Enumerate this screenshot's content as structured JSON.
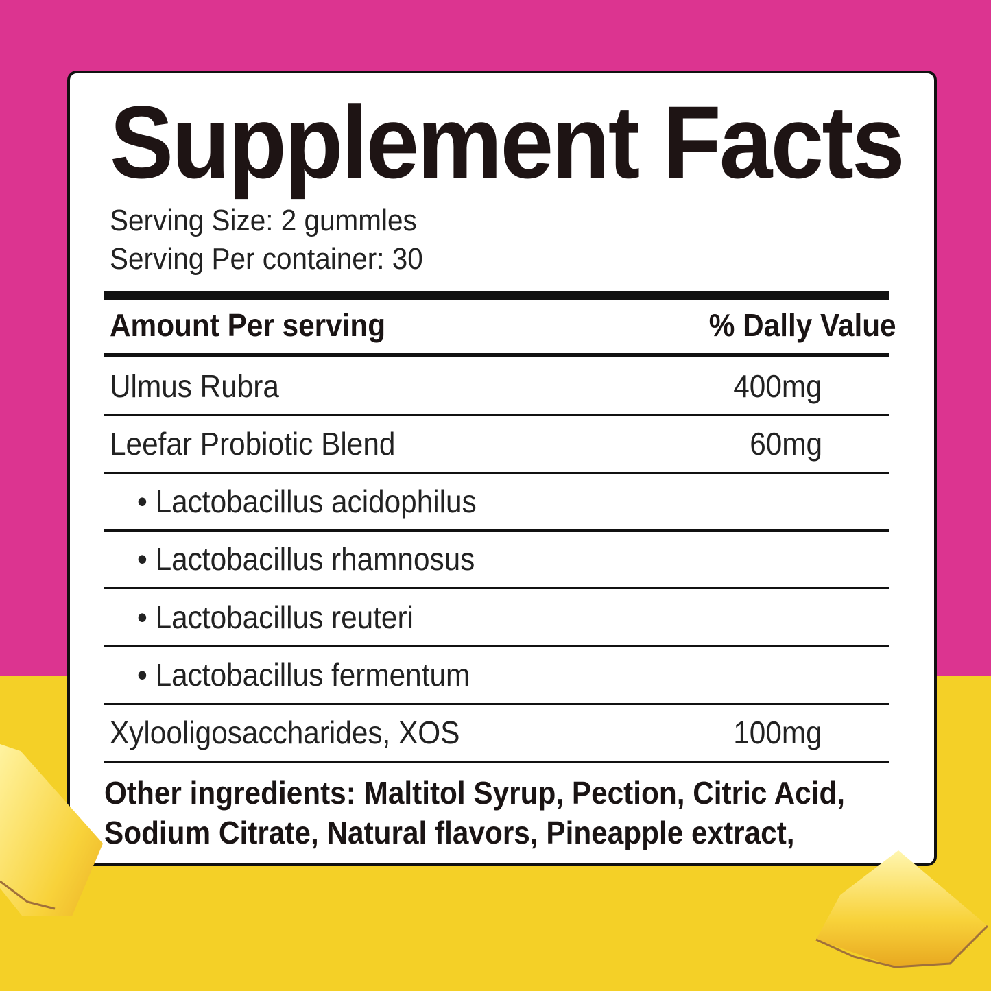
{
  "background": {
    "top_color": "#dc3490",
    "bottom_color": "#f4d027"
  },
  "label": {
    "title": "Supplement Facts",
    "serving_size": "Serving Size: 2 gummles",
    "servings_per_container": "Serving Per container: 30",
    "header_left": "Amount Per serving",
    "header_right": "% Dally Value",
    "rows": [
      {
        "name": "Ulmus Rubra",
        "amount": "400mg"
      },
      {
        "name": "Leefar Probiotic Blend",
        "amount": "60mg"
      },
      {
        "name": "• Lactobacillus acidophilus",
        "amount": ""
      },
      {
        "name": "• Lactobacillus rhamnosus",
        "amount": ""
      },
      {
        "name": "• Lactobacillus reuteri",
        "amount": ""
      },
      {
        "name": "• Lactobacillus fermentum",
        "amount": ""
      },
      {
        "name": "Xylooligosaccharides, XOS",
        "amount": "100mg"
      }
    ],
    "other_line1": "Other ingredients: Maltitol Syrup, Pection, Citric Acid,",
    "other_line2": "Sodium Citrate, Natural flavors, Pineapple extract,"
  }
}
